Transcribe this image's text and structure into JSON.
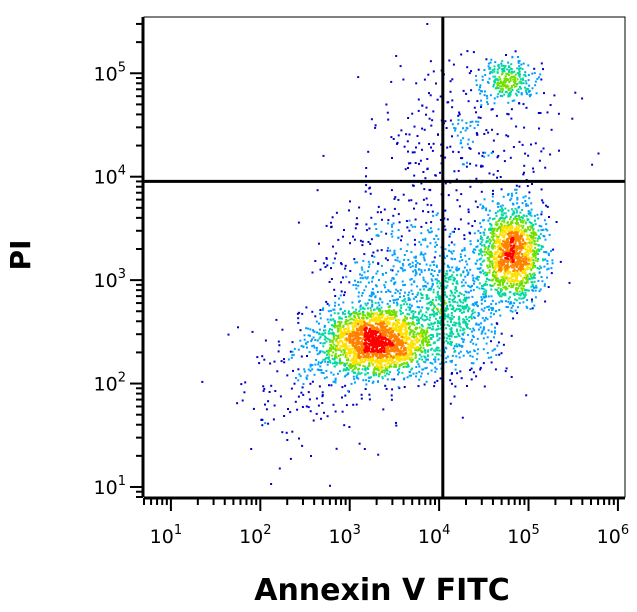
{
  "chart_data": {
    "type": "scatter",
    "subtype": "flow-cytometry-density-dot-plot",
    "title": "",
    "xlabel": "Annexin V FITC",
    "ylabel": "PI",
    "x_scale": "log",
    "y_scale": "log",
    "xlim": [
      5,
      1200000
    ],
    "ylim": [
      8,
      350000
    ],
    "x_ticks": [
      {
        "base": "10",
        "exp": "1",
        "value": 10
      },
      {
        "base": "10",
        "exp": "2",
        "value": 100
      },
      {
        "base": "10",
        "exp": "3",
        "value": 1000
      },
      {
        "base": "10",
        "exp": "4",
        "value": 10000
      },
      {
        "base": "10",
        "exp": "5",
        "value": 100000
      },
      {
        "base": "10",
        "exp": "6",
        "value": 1000000
      }
    ],
    "y_ticks": [
      {
        "base": "10",
        "exp": "1",
        "value": 10
      },
      {
        "base": "10",
        "exp": "2",
        "value": 100
      },
      {
        "base": "10",
        "exp": "3",
        "value": 1000
      },
      {
        "base": "10",
        "exp": "4",
        "value": 10000
      },
      {
        "base": "10",
        "exp": "5",
        "value": 100000
      }
    ],
    "gates": {
      "x": 11000,
      "y": 9000
    },
    "populations": [
      {
        "center_x": 1900,
        "center_y": 260,
        "spread_x_log": 0.32,
        "spread_y_log": 0.17,
        "count": 2200,
        "peak_density": "high"
      },
      {
        "center_x": 65000,
        "center_y": 1900,
        "spread_x_log": 0.17,
        "spread_y_log": 0.22,
        "count": 1500,
        "peak_density": "very high"
      },
      {
        "center_x": 60000,
        "center_y": 90000,
        "spread_x_log": 0.16,
        "spread_y_log": 0.09,
        "count": 260,
        "peak_density": "medium"
      },
      {
        "center_x": 14000,
        "center_y": 500,
        "spread_x_log": 0.28,
        "spread_y_log": 0.3,
        "count": 700,
        "peak_density": "medium"
      },
      {
        "center_x": 3500,
        "center_y": 1200,
        "spread_x_log": 0.45,
        "spread_y_log": 0.45,
        "count": 500,
        "peak_density": "low"
      },
      {
        "center_x": 20000,
        "center_y": 25000,
        "spread_x_log": 0.5,
        "spread_y_log": 0.4,
        "count": 300,
        "peak_density": "low"
      },
      {
        "center_x": 300,
        "center_y": 90,
        "spread_x_log": 0.45,
        "spread_y_log": 0.35,
        "count": 160,
        "peak_density": "low"
      }
    ],
    "color_scale": [
      "#0000c8",
      "#00a0ff",
      "#00d8a0",
      "#70e000",
      "#ffe000",
      "#ff8000",
      "#ff0000"
    ],
    "grid": false,
    "legend": "none"
  }
}
